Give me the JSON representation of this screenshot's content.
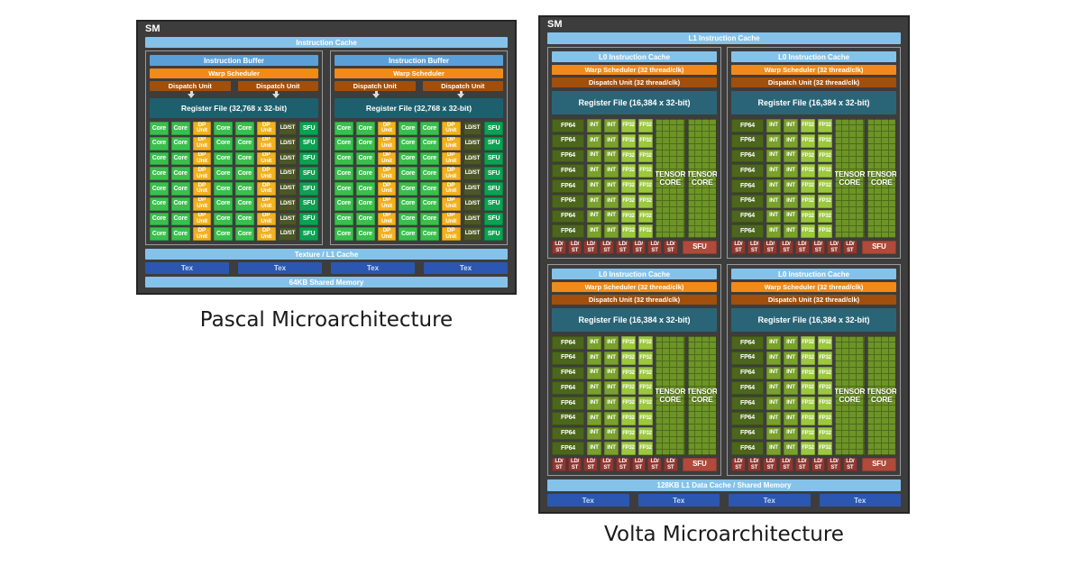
{
  "labels": {
    "pascal": "Pascal Microarchitecture",
    "volta": "Volta Microarchitecture"
  },
  "pascal": {
    "title": "SM",
    "instruction_cache": "Instruction Cache",
    "partition": {
      "instruction_buffer": "Instruction Buffer",
      "warp_scheduler": "Warp Scheduler",
      "dispatch_unit": "Dispatch Unit",
      "register_file": "Register File (32,768 x 32-bit)"
    },
    "rows": 8,
    "core_row": [
      "Core",
      "Core",
      "DP\nUnit",
      "Core",
      "Core",
      "DP\nUnit",
      "LD/ST",
      "SFU"
    ],
    "core_types": [
      "core",
      "core",
      "dp",
      "core",
      "core",
      "dp",
      "ldst",
      "sfu"
    ],
    "texture_l1": "Texture / L1 Cache",
    "tex": "Tex",
    "tex_count": 4,
    "shared_memory": "64KB Shared Memory"
  },
  "volta": {
    "title": "SM",
    "l1_instruction_cache": "L1 Instruction Cache",
    "quadrant": {
      "l0_instruction_cache": "L0 Instruction Cache",
      "warp_scheduler": "Warp Scheduler (32 thread/clk)",
      "dispatch_unit": "Dispatch Unit (32 thread/clk)",
      "register_file": "Register File (16,384 x 32-bit)",
      "rows": 8,
      "fp64": "FP64",
      "int": "INT",
      "fp32": "FP32",
      "tensor_core": "TENSOR\nCORE",
      "ldst": "LD/\nST",
      "ldst_count": 8,
      "sfu": "SFU"
    },
    "l1_data_cache": "128KB L1 Data Cache / Shared Memory",
    "tex": "Tex",
    "tex_count": 4
  },
  "colors": {
    "chassis": "#3d3d3d",
    "part_border": "#9a9a9a",
    "lightblue": "#85c2e9",
    "midblue": "#5b9fd8",
    "orange": "#f08a18",
    "darkorange": "#a14f0d",
    "teal_pascal": "#1e5f6e",
    "teal_volta": "#2a6577",
    "core_green": "#3abf4d",
    "dp_amber": "#f2b11e",
    "ldst_olive": "#4c5626",
    "sfu_green": "#0da152",
    "fp64_green": "#4c661c",
    "int_green": "#79a12b",
    "fp32_green": "#9cc83e",
    "tc_green": "#6d9427",
    "tc_line": "#4e6b1a",
    "ldst_red": "#8e382f",
    "sfu_red": "#b04a3a",
    "tex_blue": "#2b57b0",
    "caption": "#1a1a1a"
  }
}
